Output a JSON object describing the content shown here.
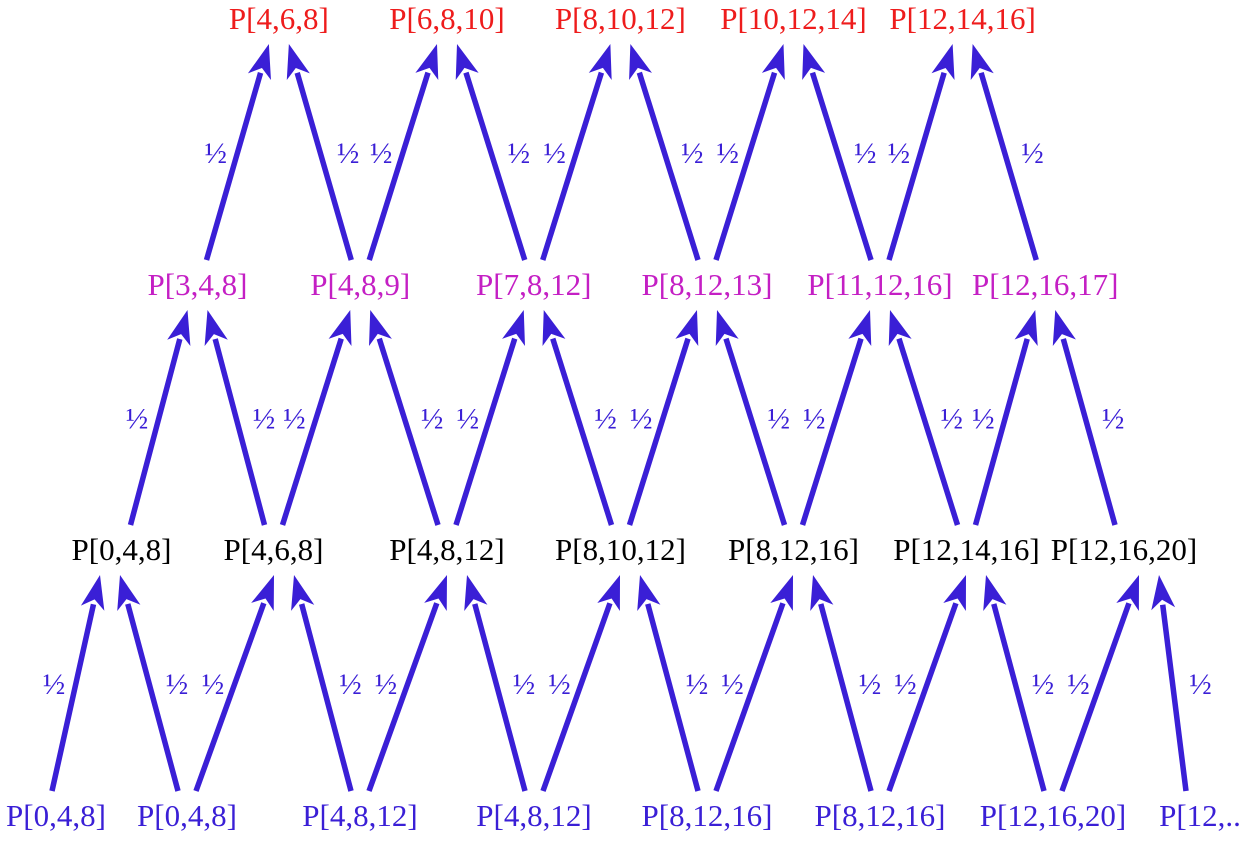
{
  "colors": {
    "arrow": "#3a1fd6",
    "weight": "#3a1fd6",
    "level_0": "#3a1fd6",
    "level_1": "#000000",
    "level_2": "#c41fc4",
    "level_3": "#ee1c1c"
  },
  "weight_label": "½",
  "levels": [
    {
      "id": "level_0",
      "nodes": [
        "P[0,4,8]",
        "P[0,4,8]",
        "P[4,8,12]",
        "P[4,8,12]",
        "P[8,12,16]",
        "P[8,12,16]",
        "P[12,16,20]",
        "P[12,.."
      ]
    },
    {
      "id": "level_1",
      "nodes": [
        "P[0,4,8]",
        "P[4,6,8]",
        "P[4,8,12]",
        "P[8,10,12]",
        "P[8,12,16]",
        "P[12,14,16]",
        "P[12,16,20]"
      ]
    },
    {
      "id": "level_2",
      "nodes": [
        "P[3,4,8]",
        "P[4,8,9]",
        "P[7,8,12]",
        "P[8,12,13]",
        "P[11,12,16]",
        "P[12,16,17]"
      ]
    },
    {
      "id": "level_3",
      "nodes": [
        "P[4,6,8]",
        "P[6,8,10]",
        "P[8,10,12]",
        "P[10,12,14]",
        "P[12,14,16]"
      ]
    }
  ]
}
